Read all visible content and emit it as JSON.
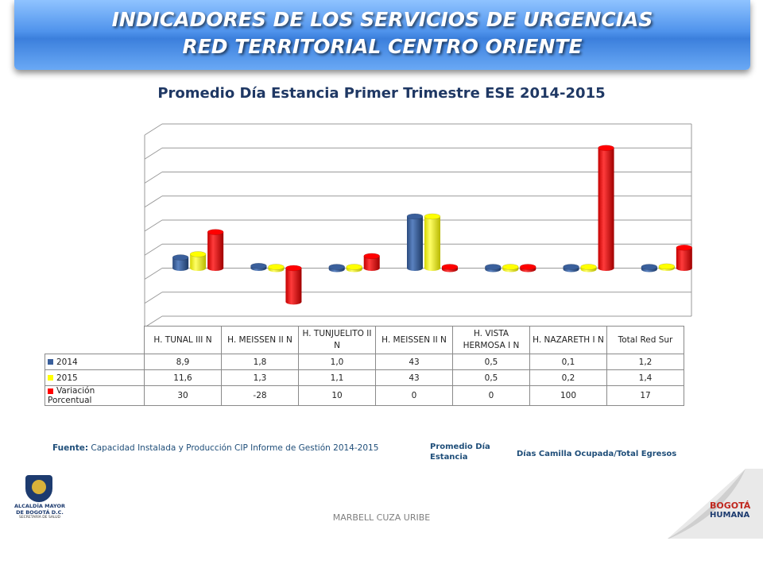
{
  "header": {
    "line1": "INDICADORES DE LOS SERVICIOS DE URGENCIAS",
    "line2": "RED TERRITORIAL CENTRO ORIENTE"
  },
  "chart_data": {
    "type": "bar",
    "title": "Promedio Día Estancia Primer Trimestre ESE 2014-2015",
    "categories": [
      "H. TUNAL  III N",
      "H. MEISSEN II N",
      "H. TUNJUELITO II N",
      "H. MEISSEN II N",
      "H. VISTA HERMOSA I N",
      "H. NAZARETH I N",
      "Total Red Sur"
    ],
    "series": [
      {
        "name": "2014",
        "color": "#3a5f9b",
        "values": [
          "8,9",
          "1,8",
          "1,0",
          "43",
          "0,5",
          "0,1",
          "1,2"
        ],
        "numeric": [
          8.9,
          1.8,
          1.0,
          43,
          0.5,
          0.1,
          1.2
        ]
      },
      {
        "name": "2015",
        "color": "#ffff00",
        "values": [
          "11,6",
          "1,3",
          "1,1",
          "43",
          "0,5",
          "0,2",
          "1,4"
        ],
        "numeric": [
          11.6,
          1.3,
          1.1,
          43,
          0.5,
          0.2,
          1.4
        ]
      },
      {
        "name": "Variación Porcentual",
        "color": "#ff0000",
        "values": [
          "30",
          "-28",
          "10",
          "0",
          "0",
          "100",
          "17"
        ],
        "numeric": [
          30,
          -28,
          10,
          0,
          0,
          100,
          17
        ]
      }
    ],
    "ylim": [
      -40,
      120
    ],
    "grid": true,
    "legend": "data-table"
  },
  "notes": {
    "source_label": "Fuente:",
    "source_text": "Capacidad Instalada y Producción CIP Informe de Gestión 2014-2015",
    "definition": "Promedio Día Estancia",
    "formula": "Días Camilla Ocupada/Total  Egresos"
  },
  "logos": {
    "left_line1": "ALCALDÍA MAYOR",
    "left_line2": "DE BOGOTÁ D.C.",
    "left_line3": "SECRETARÍA DE SALUD",
    "right_top": "BOGOTÁ",
    "right_bottom": "HUMANA"
  },
  "footer": {
    "author": "MARBELL CUZA URIBE"
  }
}
